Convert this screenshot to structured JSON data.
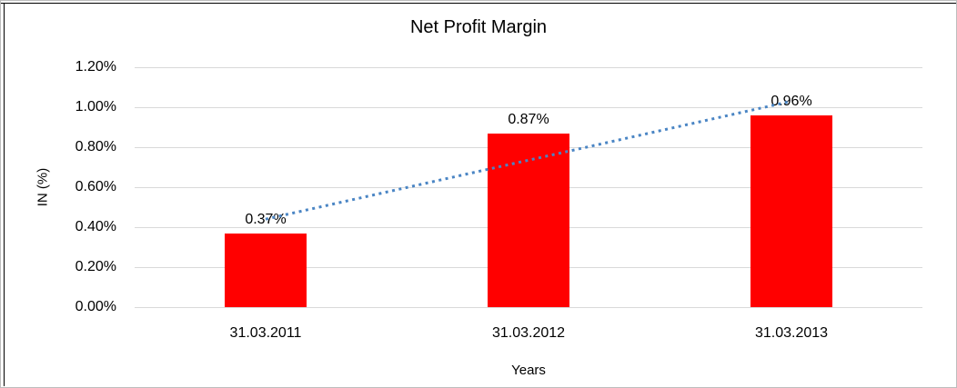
{
  "frame": {
    "background": "#FFFFFF",
    "outer_border_color": "#BDBDBD",
    "inner_border_color": "#000000"
  },
  "chart_data": {
    "type": "bar",
    "title": "Net Profit Margin",
    "xlabel": "Years",
    "ylabel": "IN (%)",
    "categories": [
      "31.03.2011",
      "31.03.2012",
      "31.03.2013"
    ],
    "values": [
      0.37,
      0.87,
      0.96
    ],
    "data_labels": [
      "0.37%",
      "0.87%",
      "0.96%"
    ],
    "y_tick_labels": [
      "0.00%",
      "0.20%",
      "0.40%",
      "0.60%",
      "0.80%",
      "1.00%",
      "1.20%"
    ],
    "ylim": [
      0,
      1.2
    ],
    "grid": true,
    "legend": "none",
    "bar_color": "#FF0000",
    "gridline_color": "#D9D9D9",
    "text_color": "#000000",
    "trendline": {
      "type": "linear",
      "style": "dotted",
      "color": "#4A85C4",
      "start_value": 0.44,
      "end_value": 1.03
    }
  }
}
